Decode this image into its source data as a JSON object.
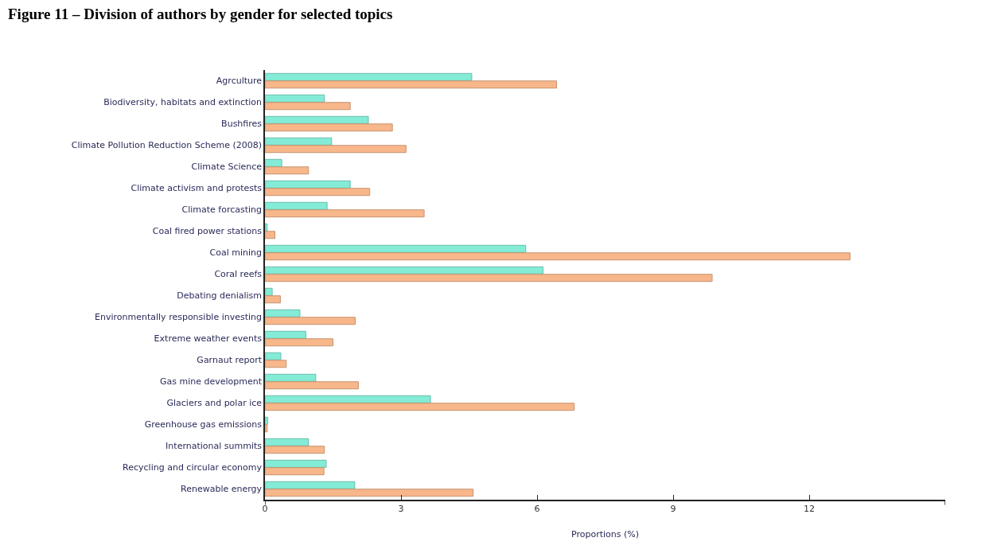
{
  "chart_data": {
    "type": "bar",
    "orientation": "horizontal",
    "title": "Figure 11 – Division of authors by gender for selected topics",
    "xlabel": "Proportions (%)",
    "categories": [
      "Agrculture",
      "Biodiversity, habitats and extinction",
      "Bushfires",
      "Climate Pollution Reduction Scheme (2008)",
      "Climate Science",
      "Climate activism and protests",
      "Climate forcasting",
      "Coal fired power stations",
      "Coal mining",
      "Coral reefs",
      "Debating denialism",
      "Environmentally responsible investing",
      "Extreme weather events",
      "Garnaut report",
      "Gas mine development",
      "Glaciers and polar ice",
      "Greenhouse gas emissions",
      "International summits",
      "Recycling and circular economy",
      "Renewable energy"
    ],
    "series": [
      {
        "color": "#84ecd6",
        "values": [
          4.56,
          1.31,
          2.28,
          1.47,
          0.37,
          1.88,
          1.37,
          0.05,
          5.75,
          6.13,
          0.16,
          0.77,
          0.9,
          0.35,
          1.12,
          3.65,
          0.06,
          0.96,
          1.35,
          1.98
        ]
      },
      {
        "color": "#f8b78a",
        "values": [
          6.43,
          1.88,
          2.81,
          3.11,
          0.96,
          2.31,
          3.51,
          0.22,
          12.9,
          9.86,
          0.34,
          1.99,
          1.5,
          0.47,
          2.06,
          6.82,
          0.05,
          1.31,
          1.3,
          4.59
        ]
      }
    ],
    "xlim": [
      0,
      15
    ],
    "xticks": [
      0,
      3,
      6,
      9,
      12,
      {
        "value": 15,
        "label": null
      }
    ]
  }
}
